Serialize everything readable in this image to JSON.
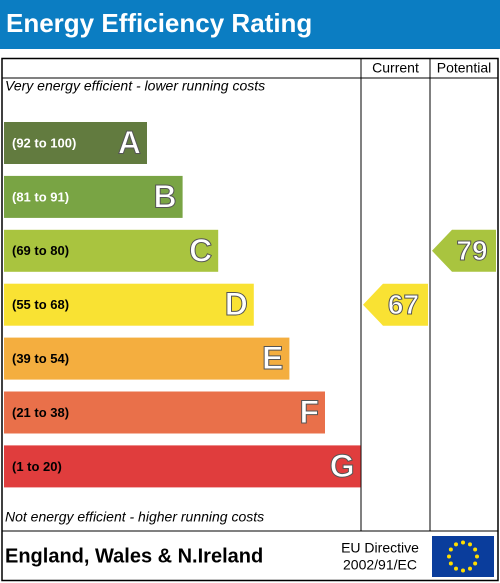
{
  "header": {
    "title": "Energy Efficiency Rating"
  },
  "columns": [
    "Current",
    "Potential"
  ],
  "top_note": "Very energy efficient - lower running costs",
  "bottom_note": "Not energy efficient - higher running costs",
  "bands": [
    {
      "range": "(92 to 100)",
      "letter": "A",
      "color": "#627b3f"
    },
    {
      "range": "(81 to 91)",
      "letter": "B",
      "color": "#79a444"
    },
    {
      "range": "(69 to 80)",
      "letter": "C",
      "color": "#a9c43f"
    },
    {
      "range": "(55 to 68)",
      "letter": "D",
      "color": "#f9e233"
    },
    {
      "range": "(39 to 54)",
      "letter": "E",
      "color": "#f4ae3f"
    },
    {
      "range": "(21 to 38)",
      "letter": "F",
      "color": "#e9704a"
    },
    {
      "range": "(1 to 20)",
      "letter": "G",
      "color": "#e03d3d"
    }
  ],
  "ratings": [
    {
      "value": 67
    },
    {
      "value": 79
    }
  ],
  "footer": {
    "region": "England, Wales & N.Ireland",
    "directive": [
      "EU Directive",
      "2002/91/EC"
    ]
  }
}
